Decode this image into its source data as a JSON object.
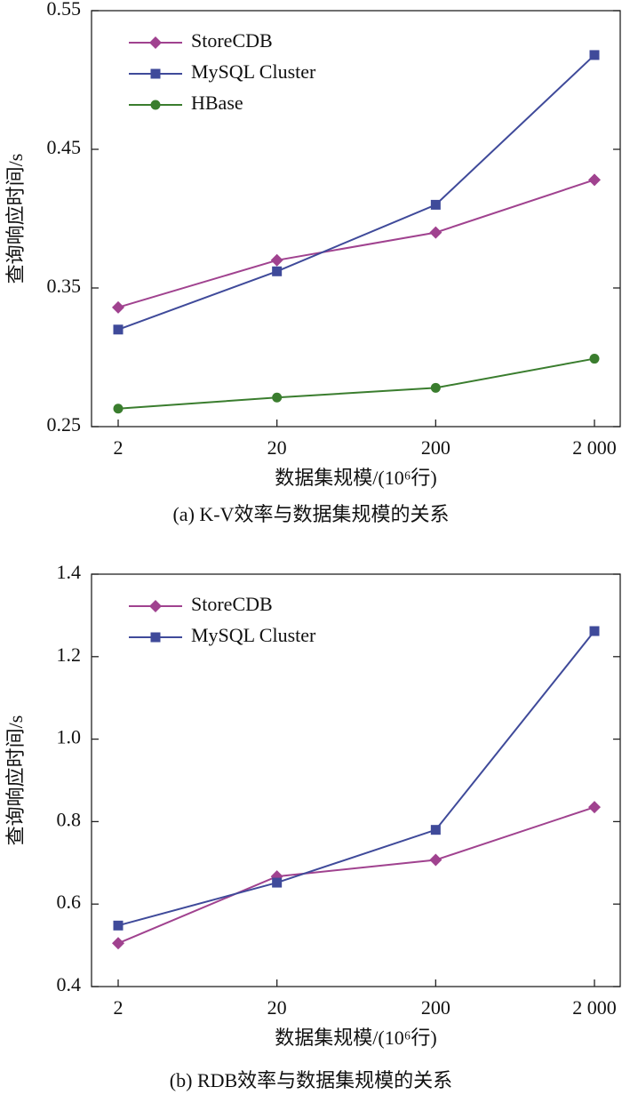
{
  "chart_data": [
    {
      "type": "line",
      "caption": "(a) K-V效率与数据集规模的关系",
      "x_label": "数据集规模/(10⁶行)",
      "y_label": "查询响应时间/s",
      "categories": [
        "2",
        "20",
        "200",
        "2 000"
      ],
      "ylim": [
        0.25,
        0.55
      ],
      "yticks": [
        0.25,
        0.35,
        0.45,
        0.55
      ],
      "legend": "upper left",
      "grid": false,
      "series": [
        {
          "name": "StoreCDB",
          "color": "#a0428f",
          "marker": "diamond",
          "values": [
            0.336,
            0.37,
            0.39,
            0.428
          ]
        },
        {
          "name": "MySQL Cluster",
          "color": "#3f4a9a",
          "marker": "square",
          "values": [
            0.32,
            0.362,
            0.41,
            0.518
          ]
        },
        {
          "name": "HBase",
          "color": "#3a7d2e",
          "marker": "circle",
          "values": [
            0.263,
            0.271,
            0.278,
            0.299
          ]
        }
      ]
    },
    {
      "type": "line",
      "caption": "(b) RDB效率与数据集规模的关系",
      "x_label": "数据集规模/(10⁶行)",
      "y_label": "查询响应时间/s",
      "categories": [
        "2",
        "20",
        "200",
        "2 000"
      ],
      "ylim": [
        0.4,
        1.4
      ],
      "yticks": [
        0.4,
        0.6,
        0.8,
        {
          "value": 1,
          "label": "1.0"
        },
        1.2,
        1.4
      ],
      "legend": "upper left",
      "grid": false,
      "series": [
        {
          "name": "StoreCDB",
          "color": "#a0428f",
          "marker": "diamond",
          "values": [
            0.505,
            0.667,
            0.707,
            0.835
          ]
        },
        {
          "name": "MySQL Cluster",
          "color": "#3f4a9a",
          "marker": "square",
          "values": [
            0.548,
            0.652,
            0.78,
            1.262
          ]
        }
      ]
    }
  ]
}
